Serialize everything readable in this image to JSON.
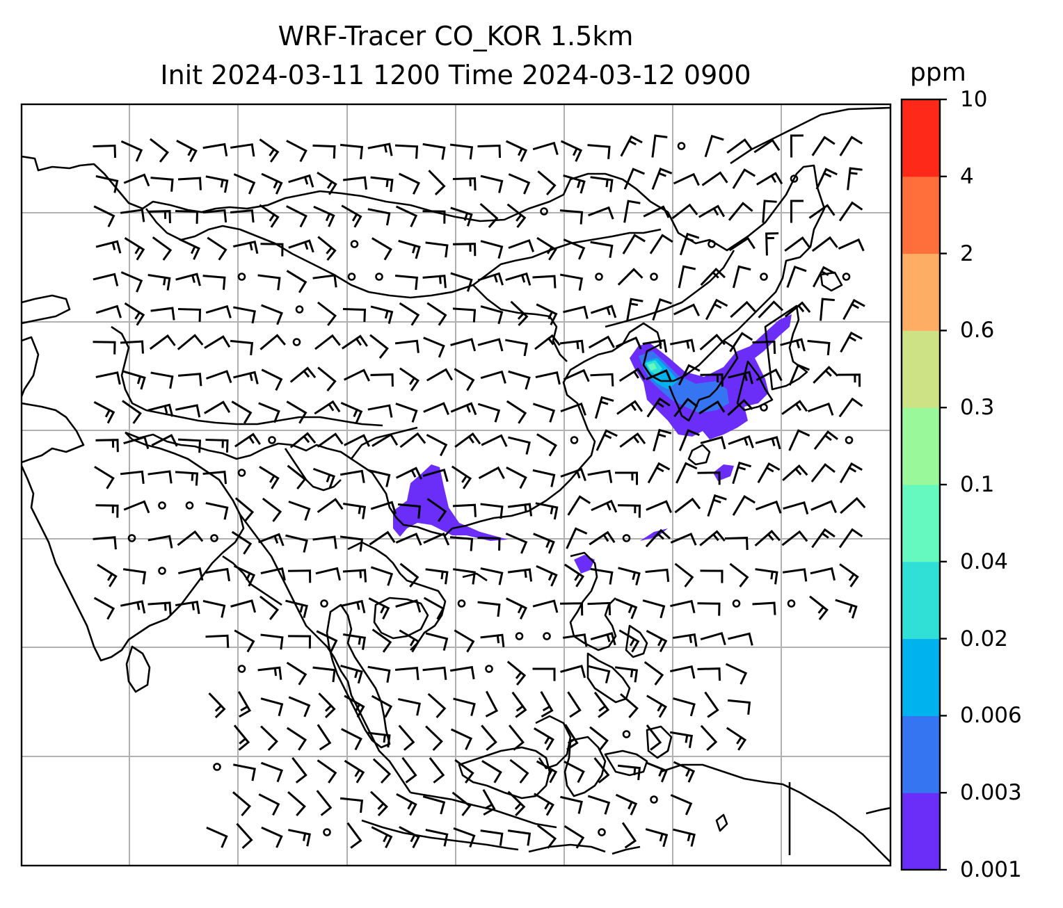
{
  "title_line1": "WRF-Tracer CO_KOR 1.5km",
  "title_line2": "Init 2024-03-11 1200 Time 2024-03-12 0900",
  "colorbar": {
    "unit": "ppm",
    "levels": [
      "0.001",
      "0.003",
      "0.006",
      "0.02",
      "0.04",
      "0.1",
      "0.3",
      "0.6",
      "2",
      "4",
      "10"
    ],
    "colors": [
      "#6b2df8",
      "#3675f2",
      "#00b3ee",
      "#30dfd6",
      "#66f9bf",
      "#99f899",
      "#cde284",
      "#feae64",
      "#fe6f3b",
      "#fe2918"
    ]
  },
  "map": {
    "projection": "Mercator, Asia domain",
    "grid": true,
    "field": "CO tracer concentration at 1.5km",
    "wind_barbs": true
  }
}
